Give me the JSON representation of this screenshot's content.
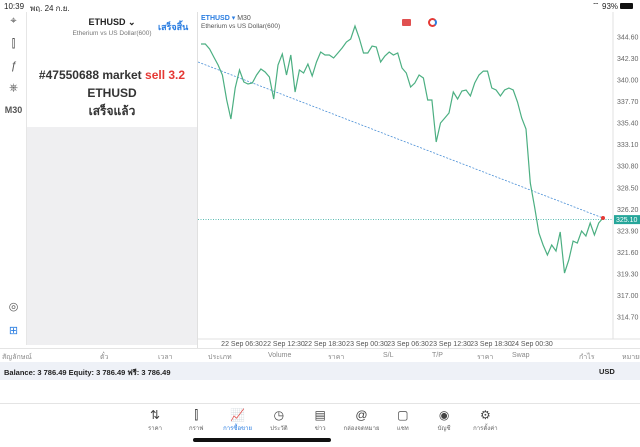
{
  "status": {
    "time": "10:39",
    "date": "พฤ. 24 ก.ย.",
    "battery": "93%"
  },
  "left_toolbar": {
    "items": [
      {
        "icon": "crosshair-icon",
        "glyph": "⌖"
      },
      {
        "icon": "candlestick-icon",
        "glyph": "⫿"
      },
      {
        "icon": "function-icon",
        "glyph": "ƒ"
      },
      {
        "icon": "objects-icon",
        "glyph": "⎈"
      }
    ],
    "timeframe": "M30"
  },
  "order_panel": {
    "symbol": "ETHUSD",
    "symbol_desc": "Etherium vs US Dollar(600)",
    "done_label": "เสร็จสิ้น",
    "message_prefix": "#47550688 market",
    "message_action": "sell 3.2",
    "message_symbol": "ETHUSD",
    "message_status": "เสร็จแล้ว"
  },
  "chart": {
    "symbol": "ETHUSD",
    "timeframe": "M30",
    "desc": "Etherium vs US Dollar(600)",
    "colors": {
      "line": "#4caf82",
      "trend": "#4a8fd6",
      "bid": "#26a69a",
      "marker": "#e53935"
    }
  },
  "chart_data": {
    "type": "line",
    "y_ticks": [
      "344.60",
      "342.30",
      "340.00",
      "337.70",
      "335.40",
      "333.10",
      "330.80",
      "328.50",
      "326.20",
      "323.90",
      "321.60",
      "319.30",
      "317.00",
      "314.70"
    ],
    "ylim": [
      313.5,
      346.6
    ],
    "x_ticks": [
      "22 Sep 06:30",
      "22 Sep 12:30",
      "22 Sep 18:30",
      "23 Sep 00:30",
      "23 Sep 06:30",
      "23 Sep 12:30",
      "23 Sep 18:30",
      "24 Sep 00:30"
    ],
    "current_price": "325.10",
    "trendline": [
      341.93,
      325.27
    ],
    "values": [
      343.85,
      343.85,
      343.32,
      342.46,
      341.61,
      340.54,
      337.87,
      335.84,
      339.15,
      341.08,
      339.79,
      339.58,
      339.69,
      340.54,
      341.18,
      340.86,
      340.33,
      337.98,
      341.61,
      342.78,
      340.54,
      342.68,
      338.73,
      341.08,
      340.76,
      341.72,
      340.44,
      341.93,
      343.0,
      342.68,
      342.68,
      342.36,
      342.89,
      343.43,
      344.07,
      344.39,
      345.77,
      344.49,
      342.89,
      342.89,
      343.64,
      343.53,
      341.93,
      342.57,
      343.0,
      342.68,
      342.89,
      341.29,
      340.76,
      339.26,
      339.69,
      340.54,
      340.22,
      337.87,
      337.87,
      333.39,
      335.42,
      335.95,
      336.48,
      338.73,
      337.98,
      338.83,
      338.94,
      338.3,
      339.69,
      340.54,
      340.96,
      340.96,
      339.15,
      338.94,
      338.3,
      338.94,
      339.15,
      338.94,
      337.66,
      335.95,
      334.78,
      329.01,
      326.45,
      323.67,
      322.39,
      321.32,
      322.39,
      321.75,
      323.78,
      319.4,
      320.79,
      322.81,
      322.6,
      323.88,
      323.35,
      324.74,
      323.46,
      324.74,
      325.27
    ]
  },
  "table": {
    "headers": [
      "สัญลักษณ์",
      "ตั๋ว",
      "เวลา",
      "ประเภท",
      "Volume",
      "ราคา",
      "S/L",
      "T/P",
      "ราคา",
      "Swap",
      "กำไร",
      "หมายเหตุ"
    ]
  },
  "balance": {
    "text": "Balance: 3 786.49 Equity: 3 786.49 ฟรี: 3 786.49",
    "currency": "USD"
  },
  "tabs": [
    {
      "label": "ราคา",
      "glyph": "⇅",
      "icon": "quotes-icon"
    },
    {
      "label": "กราฟ",
      "glyph": "⫿",
      "icon": "chart-icon"
    },
    {
      "label": "การซื้อขาย",
      "glyph": "📈",
      "icon": "trade-icon",
      "active": true
    },
    {
      "label": "ประวัติ",
      "glyph": "◷",
      "icon": "history-icon"
    },
    {
      "label": "ข่าว",
      "glyph": "▤",
      "icon": "news-icon"
    },
    {
      "label": "กล่องจดหมาย",
      "glyph": "@",
      "icon": "mailbox-icon"
    },
    {
      "label": "แชท",
      "glyph": "▢",
      "icon": "chat-icon"
    },
    {
      "label": "บัญชี",
      "glyph": "◉",
      "icon": "account-icon"
    },
    {
      "label": "การตั้งค่า",
      "glyph": "⚙",
      "icon": "settings-icon"
    }
  ]
}
